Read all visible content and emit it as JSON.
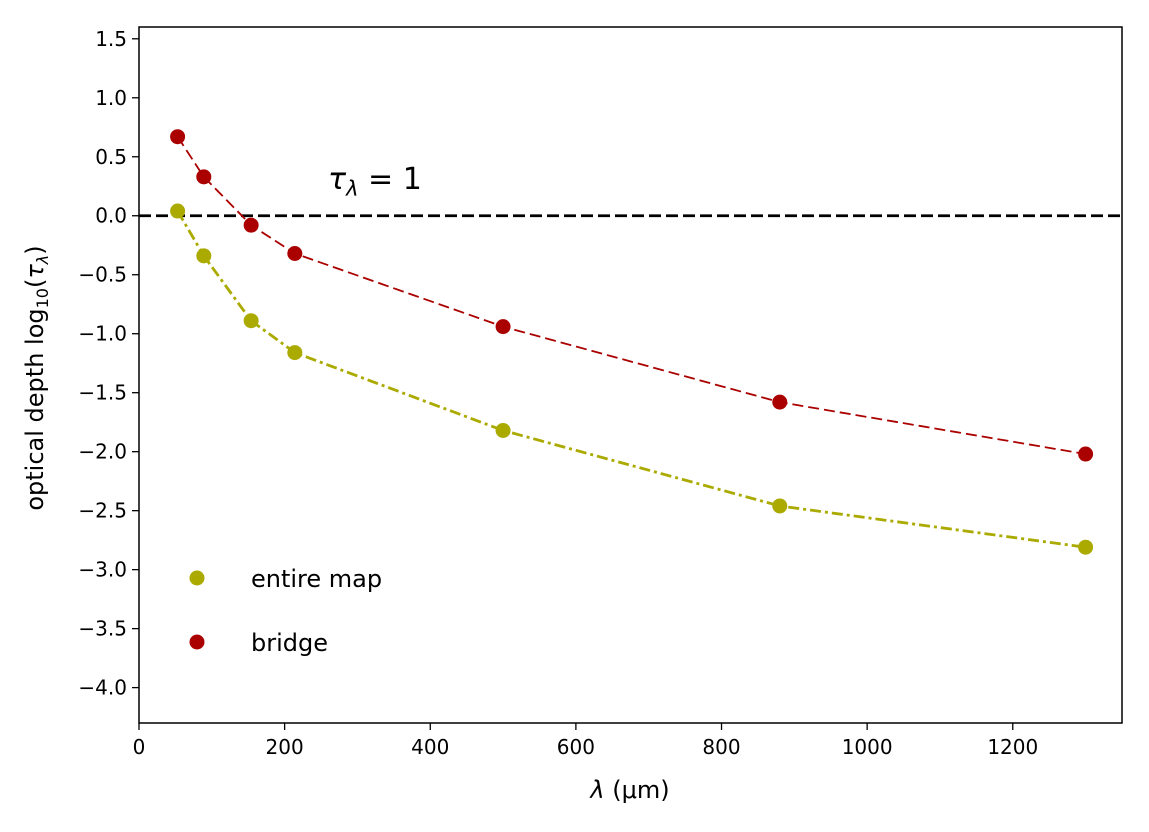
{
  "chart_data": {
    "type": "line",
    "xlabel": "λ (μm)",
    "ylabel": "optical depth log₁₀(τλ)",
    "xlim": [
      0,
      1350
    ],
    "ylim": [
      -4.3,
      1.6
    ],
    "xticks": [
      0,
      200,
      400,
      600,
      800,
      1000,
      1200
    ],
    "xtick_labels": [
      "0",
      "200",
      "400",
      "600",
      "800",
      "1000",
      "1200"
    ],
    "yticks": [
      1.5,
      1.0,
      0.5,
      0.0,
      -0.5,
      -1.0,
      -1.5,
      -2.0,
      -2.5,
      -3.0,
      -3.5,
      -4.0
    ],
    "ytick_labels": [
      "1.5",
      "1.0",
      "0.5",
      "0.0",
      "−0.5",
      "−1.0",
      "−1.5",
      "−2.0",
      "−2.5",
      "−3.0",
      "−3.5",
      "−4.0"
    ],
    "grid": false,
    "legend_position": "lower-left",
    "reference_line": {
      "y": 0.0,
      "style": "dashed",
      "color": "#000000",
      "label": "τλ = 1"
    },
    "series": [
      {
        "name": "entire map",
        "color": "#aaaa00",
        "line_style": "dash-dot",
        "points": [
          {
            "x": 53,
            "y": 0.04
          },
          {
            "x": 89,
            "y": -0.34
          },
          {
            "x": 154,
            "y": -0.89
          },
          {
            "x": 214,
            "y": -1.16
          },
          {
            "x": 500,
            "y": -1.82
          },
          {
            "x": 880,
            "y": -2.46
          },
          {
            "x": 1300,
            "y": -2.81
          }
        ]
      },
      {
        "name": "bridge",
        "color": "#aa0000",
        "line_style": "dashed",
        "points": [
          {
            "x": 53,
            "y": 0.67
          },
          {
            "x": 89,
            "y": 0.33
          },
          {
            "x": 154,
            "y": -0.08
          },
          {
            "x": 214,
            "y": -0.32
          },
          {
            "x": 500,
            "y": -0.94
          },
          {
            "x": 880,
            "y": -1.58
          },
          {
            "x": 1300,
            "y": -2.02
          }
        ]
      }
    ]
  }
}
